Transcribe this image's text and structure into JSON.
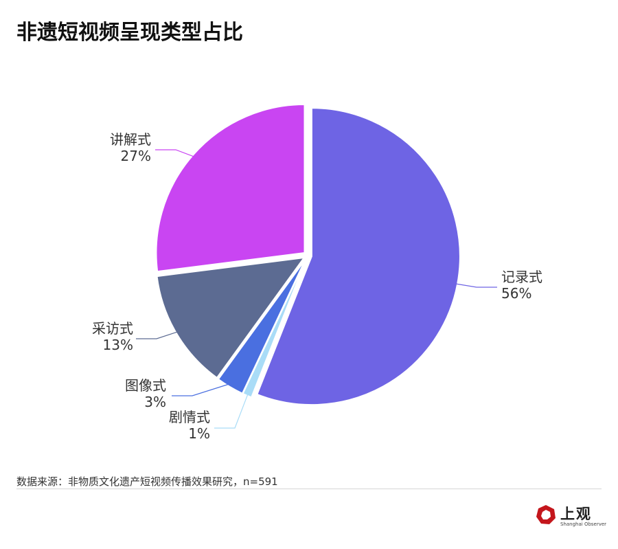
{
  "chart_data": {
    "type": "pie",
    "title": "非遗短视频呈现类型占比",
    "slices": [
      {
        "label": "记录式",
        "value": 56,
        "value_label": "56%",
        "color": "#6e64e4"
      },
      {
        "label": "剧情式",
        "value": 1,
        "value_label": "1%",
        "color": "#a9dcf7"
      },
      {
        "label": "图像式",
        "value": 3,
        "value_label": "3%",
        "color": "#4a6fe0"
      },
      {
        "label": "采访式",
        "value": 13,
        "value_label": "13%",
        "color": "#5c6b92"
      },
      {
        "label": "讲解式",
        "value": 27,
        "value_label": "27%",
        "color": "#c945f2"
      }
    ]
  },
  "source": "数据来源：非物质文化遗产短视频传播效果研究，n=591",
  "logo": {
    "text": "上观",
    "sub": "Shanghai Observer",
    "color": "#c4161c"
  }
}
